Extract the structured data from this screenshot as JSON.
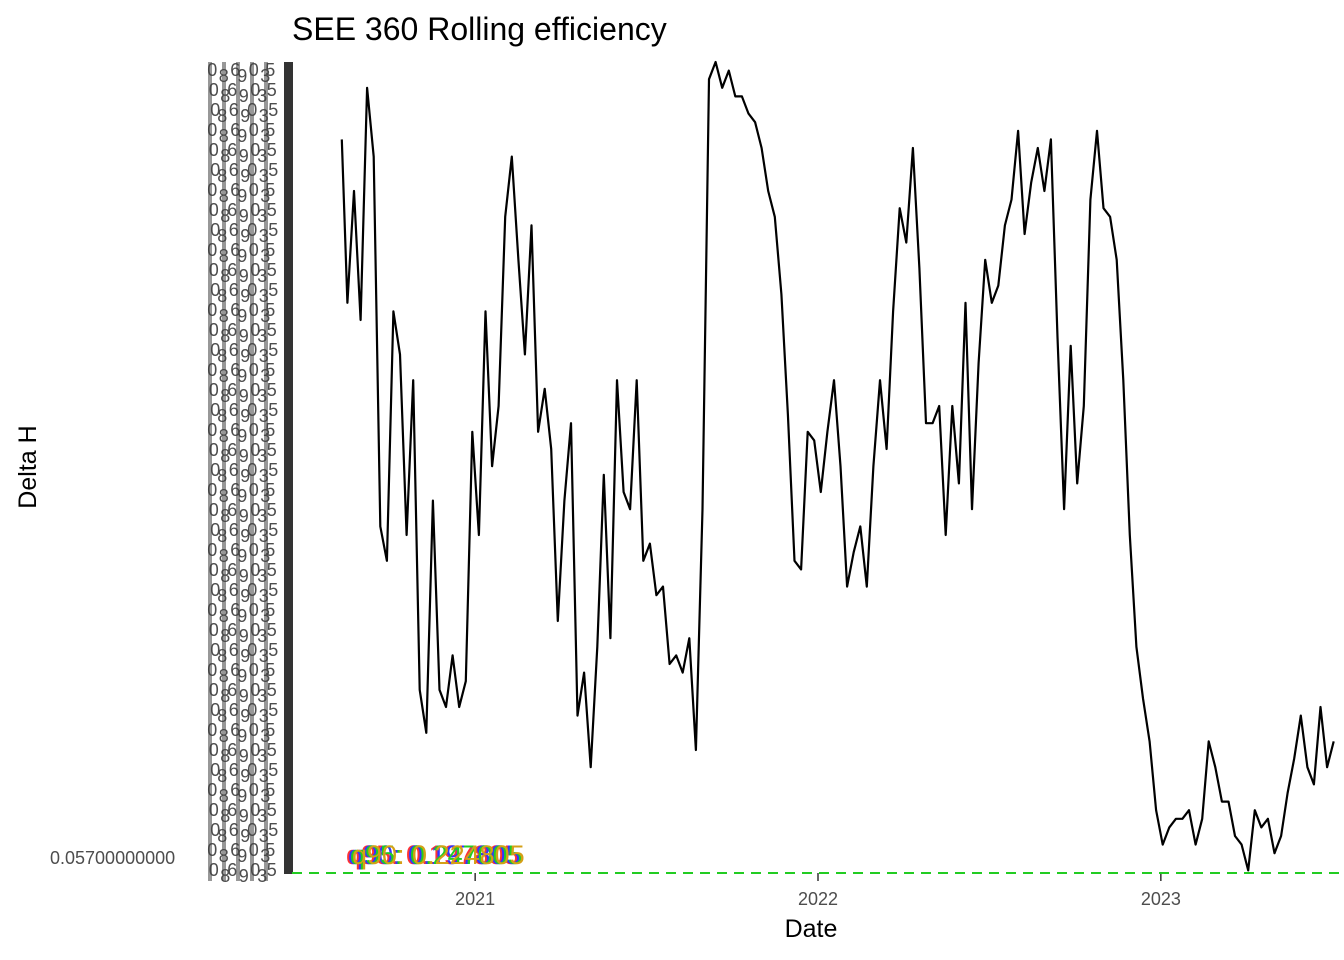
{
  "chart_data": {
    "type": "line",
    "title": "SEE 360 Rolling efficiency",
    "xlabel": "Date",
    "ylabel": "Delta H",
    "x_ticks": [
      {
        "label": "2021",
        "date": "2021-01-01"
      },
      {
        "label": "2022",
        "date": "2022-01-01"
      },
      {
        "label": "2023",
        "date": "2023-01-01"
      }
    ],
    "y_min_label": "0.05700000000",
    "xlim": [
      "2020-06-20",
      "2023-07-15"
    ],
    "ylim": [
      0.057,
      1.0
    ],
    "grid": false,
    "legend": "none",
    "line_color": "#000000",
    "reference_line": {
      "value": 0.057,
      "color": "#22cc22",
      "style": "dashed"
    },
    "overlapping_labels": [
      {
        "text": "q95: 0.197805",
        "color": "#ff3333"
      },
      {
        "text": "q90: 0.197805",
        "color": "#3333ff"
      },
      {
        "text": "q95: 0.247005",
        "color": "#22cc22"
      },
      {
        "text": "q90: 0.224805",
        "color": "#d4a017"
      }
    ],
    "series": [
      {
        "x": [
          "2020-08-12",
          "2020-08-18",
          "2020-08-25",
          "2020-09-01",
          "2020-09-08",
          "2020-09-15",
          "2020-09-22",
          "2020-09-29",
          "2020-10-06",
          "2020-10-13",
          "2020-10-20",
          "2020-10-27",
          "2020-11-03",
          "2020-11-10",
          "2020-11-17",
          "2020-11-24",
          "2020-12-01",
          "2020-12-08",
          "2020-12-15",
          "2020-12-22",
          "2020-12-29",
          "2021-01-05",
          "2021-01-12",
          "2021-01-19",
          "2021-01-26",
          "2021-02-02",
          "2021-02-09",
          "2021-02-16",
          "2021-02-23",
          "2021-03-02",
          "2021-03-09",
          "2021-03-16",
          "2021-03-23",
          "2021-03-30",
          "2021-04-06",
          "2021-04-13",
          "2021-04-20",
          "2021-04-27",
          "2021-05-04",
          "2021-05-11",
          "2021-05-18",
          "2021-05-25",
          "2021-06-01",
          "2021-06-08",
          "2021-06-15",
          "2021-06-22",
          "2021-06-29",
          "2021-07-06",
          "2021-07-13",
          "2021-07-20",
          "2021-07-27",
          "2021-08-03",
          "2021-08-10",
          "2021-08-17",
          "2021-08-24",
          "2021-08-31",
          "2021-09-07",
          "2021-09-14",
          "2021-09-21",
          "2021-09-28",
          "2021-10-05",
          "2021-10-12",
          "2021-10-19",
          "2021-10-26",
          "2021-11-02",
          "2021-11-09",
          "2021-11-16",
          "2021-11-23",
          "2021-11-30",
          "2021-12-07",
          "2021-12-14",
          "2021-12-21",
          "2021-12-28",
          "2022-01-04",
          "2022-01-11",
          "2022-01-18",
          "2022-01-25",
          "2022-02-01",
          "2022-02-08",
          "2022-02-15",
          "2022-02-22",
          "2022-03-01",
          "2022-03-08",
          "2022-03-15",
          "2022-03-22",
          "2022-03-29",
          "2022-04-05",
          "2022-04-12",
          "2022-04-19",
          "2022-04-26",
          "2022-05-03",
          "2022-05-10",
          "2022-05-17",
          "2022-05-24",
          "2022-05-31",
          "2022-06-07",
          "2022-06-14",
          "2022-06-21",
          "2022-06-28",
          "2022-07-05",
          "2022-07-12",
          "2022-07-19",
          "2022-07-26",
          "2022-08-02",
          "2022-08-09",
          "2022-08-16",
          "2022-08-23",
          "2022-08-30",
          "2022-09-06",
          "2022-09-13",
          "2022-09-20",
          "2022-09-27",
          "2022-10-04",
          "2022-10-11",
          "2022-10-18",
          "2022-10-25",
          "2022-11-01",
          "2022-11-08",
          "2022-11-15",
          "2022-11-22",
          "2022-11-29",
          "2022-12-06",
          "2022-12-13",
          "2022-12-20",
          "2022-12-27",
          "2023-01-03",
          "2023-01-10",
          "2023-01-17",
          "2023-01-24",
          "2023-01-31",
          "2023-02-07",
          "2023-02-14",
          "2023-02-21",
          "2023-02-28",
          "2023-03-07",
          "2023-03-14",
          "2023-03-21",
          "2023-03-28",
          "2023-04-04",
          "2023-04-11",
          "2023-04-18",
          "2023-04-25",
          "2023-05-02",
          "2023-05-09",
          "2023-05-16",
          "2023-05-23",
          "2023-05-30",
          "2023-06-06",
          "2023-06-13",
          "2023-06-20",
          "2023-06-27",
          "2023-07-04"
        ],
        "y": [
          0.91,
          0.72,
          0.85,
          0.7,
          0.97,
          0.89,
          0.46,
          0.42,
          0.71,
          0.66,
          0.45,
          0.63,
          0.27,
          0.22,
          0.49,
          0.27,
          0.25,
          0.31,
          0.25,
          0.28,
          0.57,
          0.45,
          0.71,
          0.53,
          0.6,
          0.82,
          0.89,
          0.77,
          0.66,
          0.81,
          0.57,
          0.62,
          0.55,
          0.35,
          0.49,
          0.58,
          0.24,
          0.29,
          0.18,
          0.32,
          0.52,
          0.33,
          0.63,
          0.5,
          0.48,
          0.63,
          0.42,
          0.44,
          0.38,
          0.39,
          0.3,
          0.31,
          0.29,
          0.33,
          0.2,
          0.48,
          0.98,
          1.0,
          0.97,
          0.99,
          0.96,
          0.96,
          0.94,
          0.93,
          0.9,
          0.85,
          0.82,
          0.73,
          0.59,
          0.42,
          0.41,
          0.57,
          0.56,
          0.5,
          0.57,
          0.63,
          0.53,
          0.39,
          0.43,
          0.46,
          0.39,
          0.53,
          0.63,
          0.55,
          0.71,
          0.83,
          0.79,
          0.9,
          0.76,
          0.58,
          0.58,
          0.6,
          0.45,
          0.6,
          0.51,
          0.72,
          0.48,
          0.65,
          0.77,
          0.72,
          0.74,
          0.81,
          0.84,
          0.92,
          0.8,
          0.86,
          0.9,
          0.85,
          0.91,
          0.68,
          0.48,
          0.67,
          0.51,
          0.6,
          0.84,
          0.92,
          0.83,
          0.82,
          0.77,
          0.63,
          0.45,
          0.32,
          0.26,
          0.21,
          0.13,
          0.09,
          0.11,
          0.12,
          0.12,
          0.13,
          0.09,
          0.12,
          0.21,
          0.18,
          0.14,
          0.14,
          0.1,
          0.09,
          0.06,
          0.13,
          0.11,
          0.12,
          0.08,
          0.1,
          0.15,
          0.19,
          0.24,
          0.18,
          0.16,
          0.25,
          0.18,
          0.21
        ]
      }
    ]
  }
}
